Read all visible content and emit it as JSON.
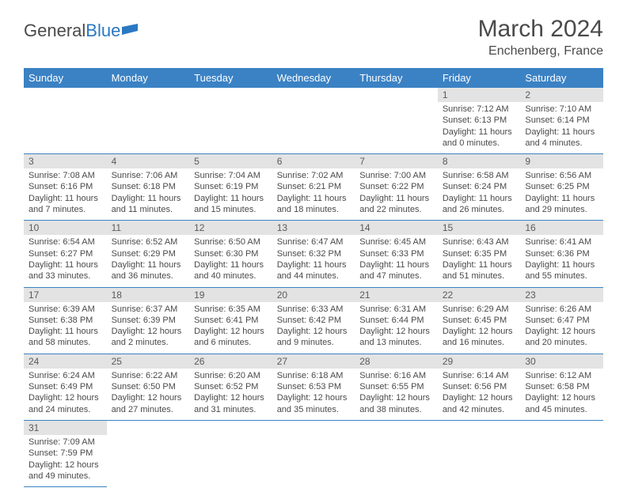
{
  "logo": {
    "text1": "General",
    "text2": "Blue"
  },
  "title": "March 2024",
  "location": "Enchenberg, France",
  "colors": {
    "header_bg": "#3b82c4",
    "header_fg": "#ffffff",
    "daynum_bg": "#e3e3e3",
    "text": "#4a4a4a",
    "rule": "#3b82c4",
    "page_bg": "#ffffff"
  },
  "day_labels": [
    "Sunday",
    "Monday",
    "Tuesday",
    "Wednesday",
    "Thursday",
    "Friday",
    "Saturday"
  ],
  "weeks": [
    [
      null,
      null,
      null,
      null,
      null,
      {
        "n": "1",
        "sr": "Sunrise: 7:12 AM",
        "ss": "Sunset: 6:13 PM",
        "dl1": "Daylight: 11 hours",
        "dl2": "and 0 minutes."
      },
      {
        "n": "2",
        "sr": "Sunrise: 7:10 AM",
        "ss": "Sunset: 6:14 PM",
        "dl1": "Daylight: 11 hours",
        "dl2": "and 4 minutes."
      }
    ],
    [
      {
        "n": "3",
        "sr": "Sunrise: 7:08 AM",
        "ss": "Sunset: 6:16 PM",
        "dl1": "Daylight: 11 hours",
        "dl2": "and 7 minutes."
      },
      {
        "n": "4",
        "sr": "Sunrise: 7:06 AM",
        "ss": "Sunset: 6:18 PM",
        "dl1": "Daylight: 11 hours",
        "dl2": "and 11 minutes."
      },
      {
        "n": "5",
        "sr": "Sunrise: 7:04 AM",
        "ss": "Sunset: 6:19 PM",
        "dl1": "Daylight: 11 hours",
        "dl2": "and 15 minutes."
      },
      {
        "n": "6",
        "sr": "Sunrise: 7:02 AM",
        "ss": "Sunset: 6:21 PM",
        "dl1": "Daylight: 11 hours",
        "dl2": "and 18 minutes."
      },
      {
        "n": "7",
        "sr": "Sunrise: 7:00 AM",
        "ss": "Sunset: 6:22 PM",
        "dl1": "Daylight: 11 hours",
        "dl2": "and 22 minutes."
      },
      {
        "n": "8",
        "sr": "Sunrise: 6:58 AM",
        "ss": "Sunset: 6:24 PM",
        "dl1": "Daylight: 11 hours",
        "dl2": "and 26 minutes."
      },
      {
        "n": "9",
        "sr": "Sunrise: 6:56 AM",
        "ss": "Sunset: 6:25 PM",
        "dl1": "Daylight: 11 hours",
        "dl2": "and 29 minutes."
      }
    ],
    [
      {
        "n": "10",
        "sr": "Sunrise: 6:54 AM",
        "ss": "Sunset: 6:27 PM",
        "dl1": "Daylight: 11 hours",
        "dl2": "and 33 minutes."
      },
      {
        "n": "11",
        "sr": "Sunrise: 6:52 AM",
        "ss": "Sunset: 6:29 PM",
        "dl1": "Daylight: 11 hours",
        "dl2": "and 36 minutes."
      },
      {
        "n": "12",
        "sr": "Sunrise: 6:50 AM",
        "ss": "Sunset: 6:30 PM",
        "dl1": "Daylight: 11 hours",
        "dl2": "and 40 minutes."
      },
      {
        "n": "13",
        "sr": "Sunrise: 6:47 AM",
        "ss": "Sunset: 6:32 PM",
        "dl1": "Daylight: 11 hours",
        "dl2": "and 44 minutes."
      },
      {
        "n": "14",
        "sr": "Sunrise: 6:45 AM",
        "ss": "Sunset: 6:33 PM",
        "dl1": "Daylight: 11 hours",
        "dl2": "and 47 minutes."
      },
      {
        "n": "15",
        "sr": "Sunrise: 6:43 AM",
        "ss": "Sunset: 6:35 PM",
        "dl1": "Daylight: 11 hours",
        "dl2": "and 51 minutes."
      },
      {
        "n": "16",
        "sr": "Sunrise: 6:41 AM",
        "ss": "Sunset: 6:36 PM",
        "dl1": "Daylight: 11 hours",
        "dl2": "and 55 minutes."
      }
    ],
    [
      {
        "n": "17",
        "sr": "Sunrise: 6:39 AM",
        "ss": "Sunset: 6:38 PM",
        "dl1": "Daylight: 11 hours",
        "dl2": "and 58 minutes."
      },
      {
        "n": "18",
        "sr": "Sunrise: 6:37 AM",
        "ss": "Sunset: 6:39 PM",
        "dl1": "Daylight: 12 hours",
        "dl2": "and 2 minutes."
      },
      {
        "n": "19",
        "sr": "Sunrise: 6:35 AM",
        "ss": "Sunset: 6:41 PM",
        "dl1": "Daylight: 12 hours",
        "dl2": "and 6 minutes."
      },
      {
        "n": "20",
        "sr": "Sunrise: 6:33 AM",
        "ss": "Sunset: 6:42 PM",
        "dl1": "Daylight: 12 hours",
        "dl2": "and 9 minutes."
      },
      {
        "n": "21",
        "sr": "Sunrise: 6:31 AM",
        "ss": "Sunset: 6:44 PM",
        "dl1": "Daylight: 12 hours",
        "dl2": "and 13 minutes."
      },
      {
        "n": "22",
        "sr": "Sunrise: 6:29 AM",
        "ss": "Sunset: 6:45 PM",
        "dl1": "Daylight: 12 hours",
        "dl2": "and 16 minutes."
      },
      {
        "n": "23",
        "sr": "Sunrise: 6:26 AM",
        "ss": "Sunset: 6:47 PM",
        "dl1": "Daylight: 12 hours",
        "dl2": "and 20 minutes."
      }
    ],
    [
      {
        "n": "24",
        "sr": "Sunrise: 6:24 AM",
        "ss": "Sunset: 6:49 PM",
        "dl1": "Daylight: 12 hours",
        "dl2": "and 24 minutes."
      },
      {
        "n": "25",
        "sr": "Sunrise: 6:22 AM",
        "ss": "Sunset: 6:50 PM",
        "dl1": "Daylight: 12 hours",
        "dl2": "and 27 minutes."
      },
      {
        "n": "26",
        "sr": "Sunrise: 6:20 AM",
        "ss": "Sunset: 6:52 PM",
        "dl1": "Daylight: 12 hours",
        "dl2": "and 31 minutes."
      },
      {
        "n": "27",
        "sr": "Sunrise: 6:18 AM",
        "ss": "Sunset: 6:53 PM",
        "dl1": "Daylight: 12 hours",
        "dl2": "and 35 minutes."
      },
      {
        "n": "28",
        "sr": "Sunrise: 6:16 AM",
        "ss": "Sunset: 6:55 PM",
        "dl1": "Daylight: 12 hours",
        "dl2": "and 38 minutes."
      },
      {
        "n": "29",
        "sr": "Sunrise: 6:14 AM",
        "ss": "Sunset: 6:56 PM",
        "dl1": "Daylight: 12 hours",
        "dl2": "and 42 minutes."
      },
      {
        "n": "30",
        "sr": "Sunrise: 6:12 AM",
        "ss": "Sunset: 6:58 PM",
        "dl1": "Daylight: 12 hours",
        "dl2": "and 45 minutes."
      }
    ],
    [
      {
        "n": "31",
        "sr": "Sunrise: 7:09 AM",
        "ss": "Sunset: 7:59 PM",
        "dl1": "Daylight: 12 hours",
        "dl2": "and 49 minutes."
      },
      null,
      null,
      null,
      null,
      null,
      null
    ]
  ]
}
